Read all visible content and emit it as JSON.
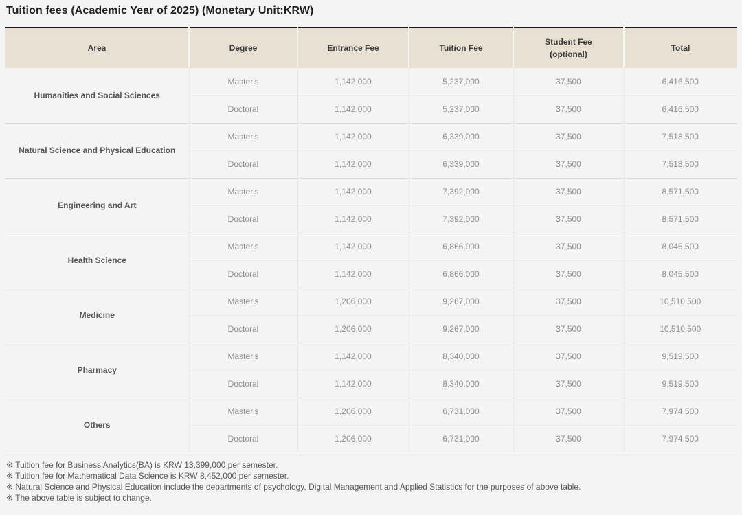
{
  "page": {
    "title": "Tuition fees (Academic Year of 2025) (Monetary Unit:KRW)"
  },
  "theme": {
    "header_bg": "#e8e0d3",
    "top_border": "#1b1b1b",
    "page_bg": "#f4f4f4"
  },
  "table": {
    "columns": [
      {
        "label": "Area"
      },
      {
        "label": "Degree"
      },
      {
        "label": "Entrance Fee"
      },
      {
        "label": "Tuition Fee"
      },
      {
        "label": "Student Fee",
        "sublabel": "(optional)"
      },
      {
        "label": "Total"
      }
    ],
    "groups": [
      {
        "area": "Humanities and Social Sciences",
        "rows": [
          [
            "Master's",
            "1,142,000",
            "5,237,000",
            "37,500",
            "6,416,500"
          ],
          [
            "Doctoral",
            "1,142,000",
            "5,237,000",
            "37,500",
            "6,416,500"
          ]
        ]
      },
      {
        "area": "Natural Science and Physical Education",
        "rows": [
          [
            "Master's",
            "1,142,000",
            "6,339,000",
            "37,500",
            "7,518,500"
          ],
          [
            "Doctoral",
            "1,142,000",
            "6,339,000",
            "37,500",
            "7,518,500"
          ]
        ]
      },
      {
        "area": "Engineering and Art",
        "rows": [
          [
            "Master's",
            "1,142,000",
            "7,392,000",
            "37,500",
            "8,571,500"
          ],
          [
            "Doctoral",
            "1,142,000",
            "7,392,000",
            "37,500",
            "8,571,500"
          ]
        ]
      },
      {
        "area": "Health Science",
        "rows": [
          [
            "Master's",
            "1,142,000",
            "6,866,000",
            "37,500",
            "8,045,500"
          ],
          [
            "Doctoral",
            "1,142,000",
            "6,866,000",
            "37,500",
            "8,045,500"
          ]
        ]
      },
      {
        "area": "Medicine",
        "rows": [
          [
            "Master's",
            "1,206,000",
            "9,267,000",
            "37,500",
            "10,510,500"
          ],
          [
            "Doctoral",
            "1,206,000",
            "9,267,000",
            "37,500",
            "10,510,500"
          ]
        ]
      },
      {
        "area": "Pharmacy",
        "rows": [
          [
            "Master's",
            "1,142,000",
            "8,340,000",
            "37,500",
            "9,519,500"
          ],
          [
            "Doctoral",
            "1,142,000",
            "8,340,000",
            "37,500",
            "9,519,500"
          ]
        ]
      },
      {
        "area": "Others",
        "rows": [
          [
            "Master's",
            "1,206,000",
            "6,731,000",
            "37,500",
            "7,974,500"
          ],
          [
            "Doctoral",
            "1,206,000",
            "6,731,000",
            "37,500",
            "7,974,500"
          ]
        ]
      }
    ]
  },
  "footnotes": [
    "※ Tuition fee for Business Analytics(BA) is KRW 13,399,000 per semester.",
    "※ Tuition fee for Mathematical Data Science is KRW 8,452,000 per semester.",
    "※ Natural Science and Physical Education include the departments of psychology, Digital Management and Applied Statistics for the purposes of above table.",
    "※ The above table is subject to change."
  ]
}
